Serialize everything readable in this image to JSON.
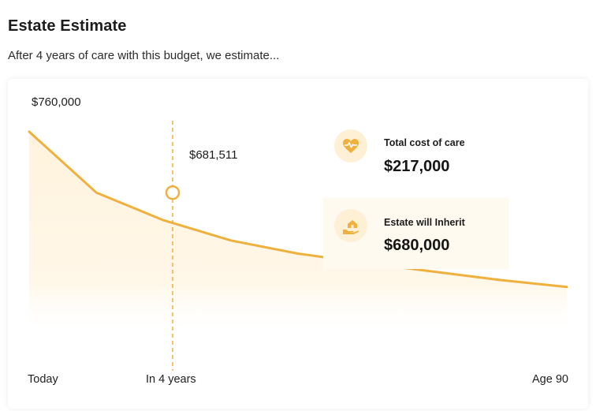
{
  "header": {
    "title": "Estate Estimate",
    "subtitle": "After 4 years of care with this budget, we estimate..."
  },
  "colors": {
    "accent": "#f0b03e",
    "area_fill": "#fff3dc",
    "icon_bg": "#fdf0d4"
  },
  "chart_data": {
    "type": "area",
    "x_tick_labels": [
      "Today",
      "In 4 years",
      "Age 90"
    ],
    "y_top_label": "$760,000",
    "series": [
      {
        "values": [
          760000,
          681511,
          646000,
          620000,
          603000,
          591000,
          580000,
          569000,
          560000
        ]
      }
    ],
    "highlight": {
      "label": "In 4 years",
      "value": 681511,
      "value_label": "$681,511"
    },
    "y_scale": {
      "top_value": 760000,
      "bottom_value": 0
    }
  },
  "stats": {
    "total_cost": {
      "icon": "heart-pulse-icon",
      "label": "Total cost of care",
      "value": "$217,000"
    },
    "estate": {
      "icon": "hand-house-icon",
      "label": "Estate will Inherit",
      "value": "$680,000"
    }
  }
}
